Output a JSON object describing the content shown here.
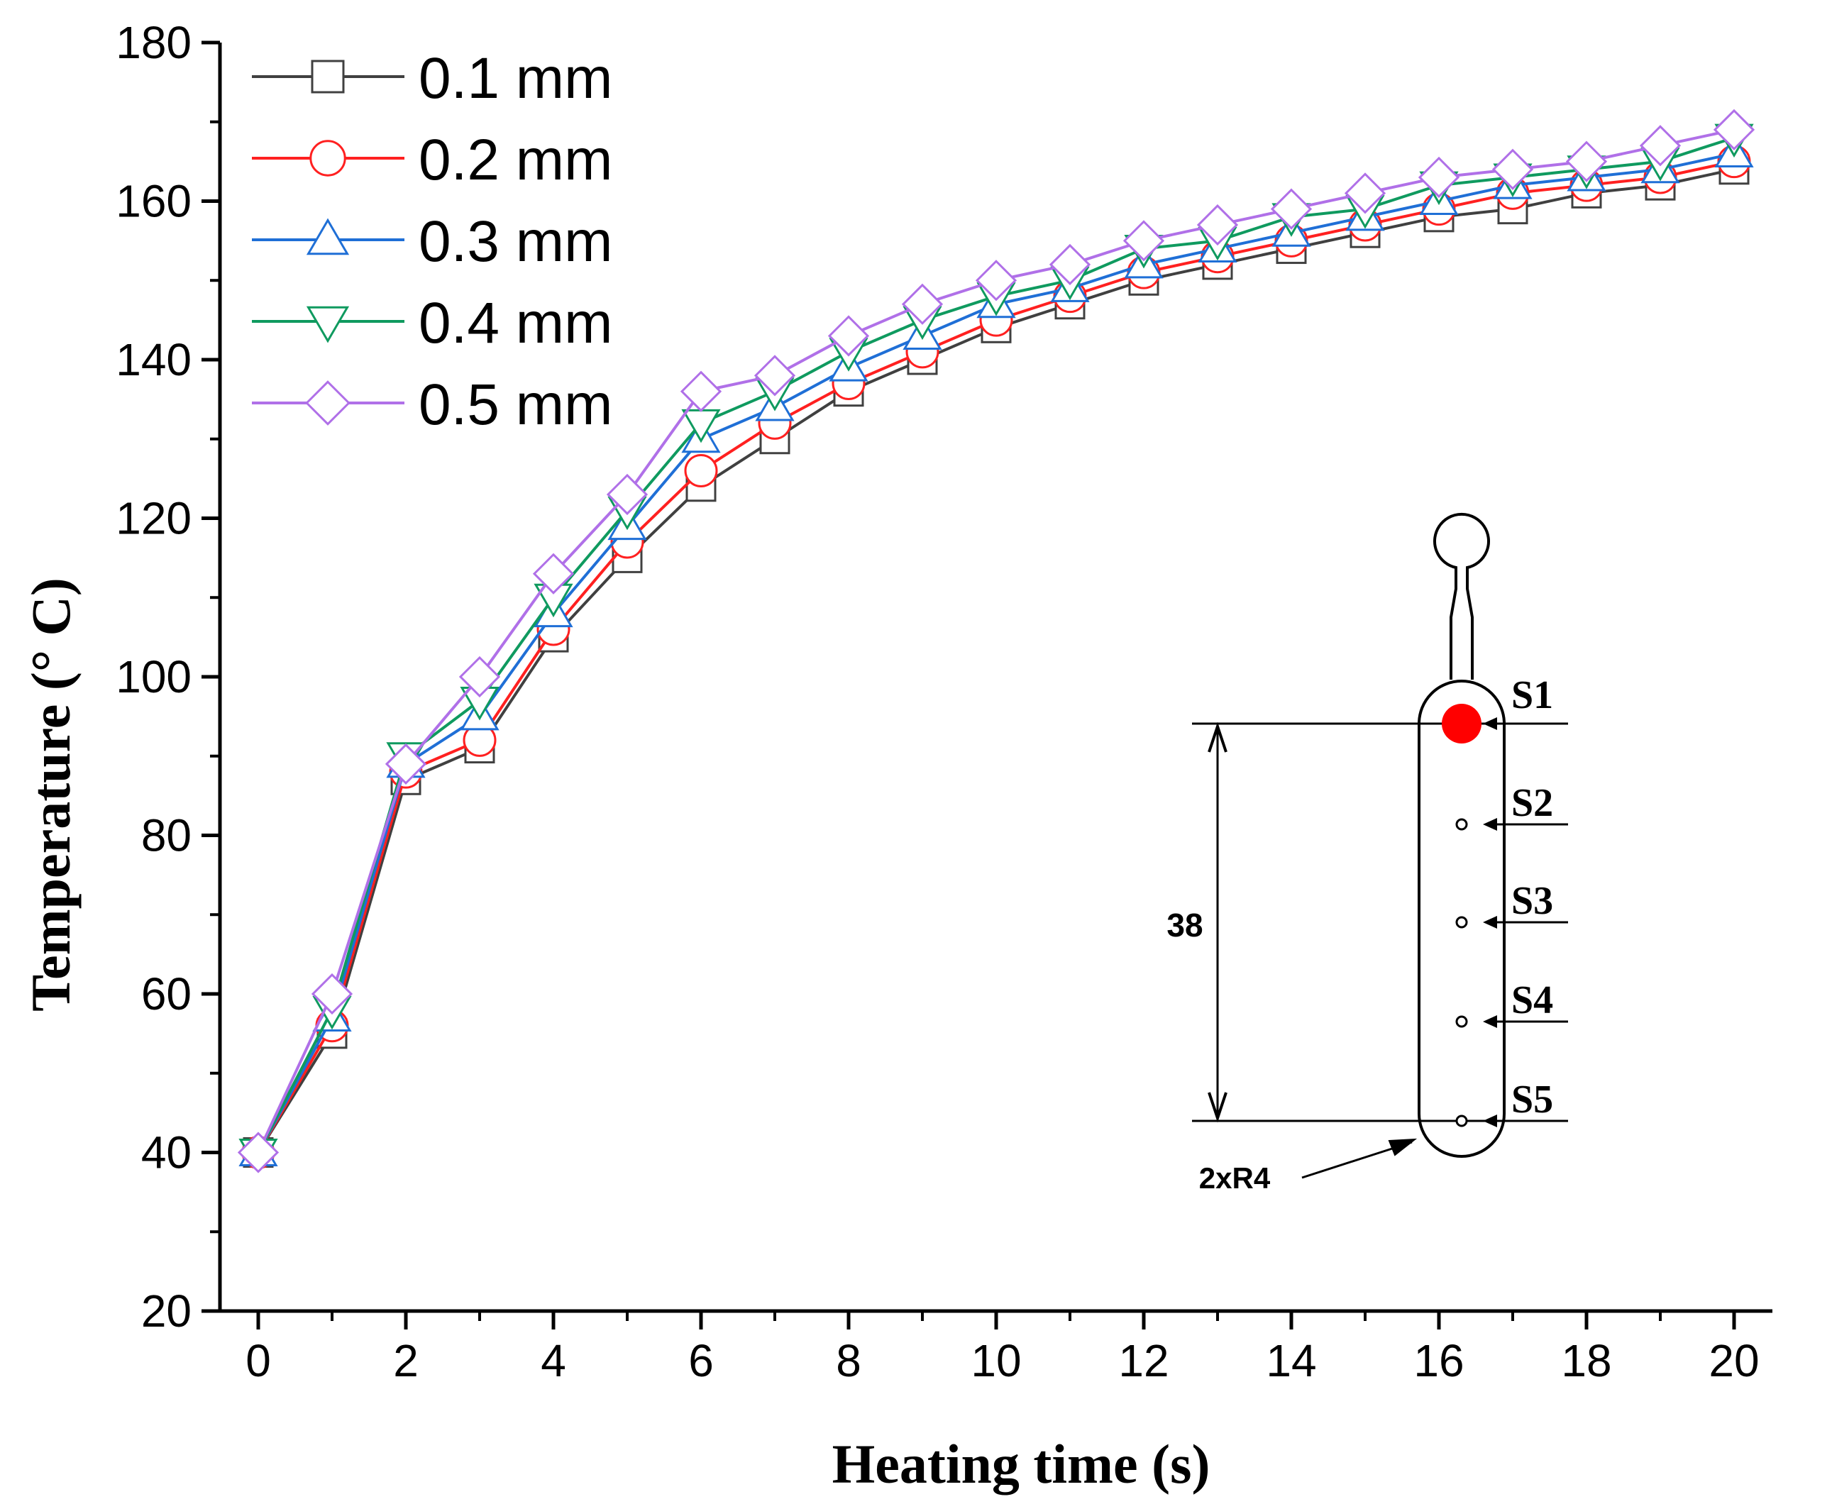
{
  "chart_data": {
    "type": "line",
    "xlabel": "Heating time (s)",
    "ylabel": "Temperature (° C)",
    "xlim": [
      0,
      20
    ],
    "ylim": [
      20,
      180
    ],
    "x_ticks": [
      0,
      2,
      4,
      6,
      8,
      10,
      12,
      14,
      16,
      18,
      20
    ],
    "y_ticks": [
      20,
      40,
      60,
      80,
      100,
      120,
      140,
      160,
      180
    ],
    "grid": false,
    "legend_position": "top-left",
    "x": [
      0,
      1,
      2,
      3,
      4,
      5,
      6,
      7,
      8,
      9,
      10,
      11,
      12,
      13,
      14,
      15,
      16,
      17,
      18,
      19,
      20
    ],
    "series": [
      {
        "name": "0.1 mm",
        "color": "#404040",
        "marker": "square",
        "values": [
          40,
          55,
          87,
          91,
          105,
          115,
          124,
          130,
          136,
          140,
          144,
          147,
          150,
          152,
          154,
          156,
          158,
          159,
          161,
          162,
          164
        ]
      },
      {
        "name": "0.2 mm",
        "color": "#ff2020",
        "marker": "circle",
        "values": [
          40,
          56,
          88,
          92,
          106,
          117,
          126,
          132,
          137,
          141,
          145,
          148,
          151,
          153,
          155,
          157,
          159,
          161,
          162,
          163,
          165
        ]
      },
      {
        "name": "0.3 mm",
        "color": "#1f6fd6",
        "marker": "triangle-up",
        "values": [
          40,
          57,
          89,
          95,
          108,
          119,
          130,
          134,
          139,
          143,
          147,
          149,
          152,
          154,
          156,
          158,
          160,
          162,
          163,
          164,
          166
        ]
      },
      {
        "name": "0.4 mm",
        "color": "#0f9a5f",
        "marker": "triangle-down",
        "values": [
          40,
          58,
          90,
          97,
          110,
          121,
          132,
          136,
          141,
          145,
          148,
          150,
          154,
          155,
          158,
          159,
          162,
          163,
          164,
          165,
          168
        ]
      },
      {
        "name": "0.5 mm",
        "color": "#b070e8",
        "marker": "diamond",
        "values": [
          40,
          60,
          89,
          100,
          113,
          123,
          136,
          138,
          143,
          147,
          150,
          152,
          155,
          157,
          159,
          161,
          163,
          164,
          165,
          167,
          169
        ]
      }
    ],
    "annotations": {
      "sensor_labels": [
        "S1",
        "S2",
        "S3",
        "S4",
        "S5"
      ],
      "highlight_sensor": "S1",
      "highlight_color": "#ff0000",
      "dimension_label": "38",
      "radius_label": "2xR4"
    }
  }
}
